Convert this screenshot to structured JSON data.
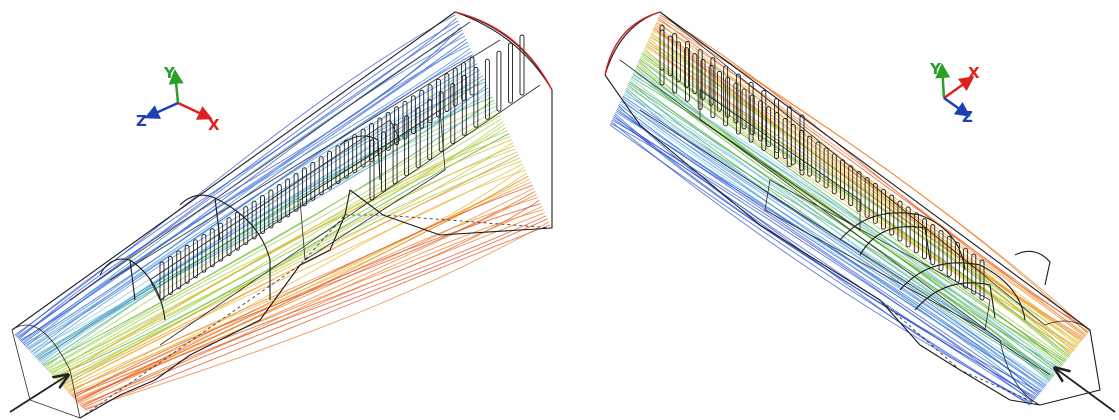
{
  "axes": {
    "left": {
      "y_label": "Y",
      "z_label": "Z",
      "x_label": "X"
    },
    "right": {
      "y_label": "Y",
      "x_label": "X",
      "z_label": "Z"
    }
  },
  "colors": {
    "x_axis": "#e02020",
    "y_axis": "#2aa02a",
    "z_axis": "#1f3fb4",
    "inlet_arrow": "#222222",
    "end_arc": "#d62020",
    "streamline_palette": [
      "#2a4fd0",
      "#3a8ad8",
      "#7cc6e0",
      "#3aa83a",
      "#9ccd3a",
      "#e7b325",
      "#ef7a1f",
      "#e0481f"
    ]
  },
  "icons": [
    "axis-triad-icon",
    "inlet-arrow-icon"
  ]
}
